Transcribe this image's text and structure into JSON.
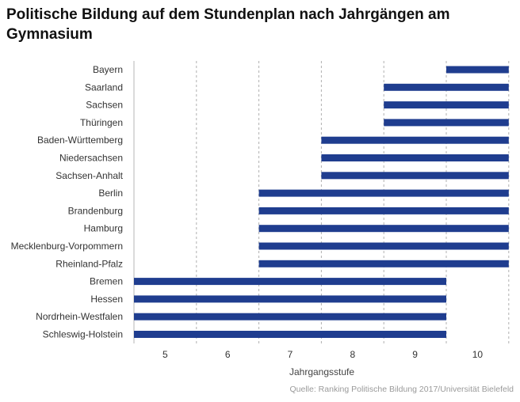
{
  "chart_data": {
    "type": "bar",
    "orientation": "horizontal-range",
    "title": "Politische Bildung auf dem Stundenplan nach Jahrgängen am Gymnasium",
    "xlabel": "Jahrgangsstufe",
    "ylabel": "",
    "x_ticks": [
      "5",
      "6",
      "7",
      "8",
      "9",
      "10"
    ],
    "xlim": [
      5,
      10
    ],
    "grid": "vertical dashed",
    "source": "Quelle: Ranking Politische Bildung 2017/Universität Bielefeld",
    "bar_color": "#1f3d8f",
    "categories": [
      "Bayern",
      "Saarland",
      "Sachsen",
      "Thüringen",
      "Baden-Württemberg",
      "Niedersachsen",
      "Sachsen-Anhalt",
      "Berlin",
      "Brandenburg",
      "Hamburg",
      "Mecklenburg-Vorpommern",
      "Rheinland-Pfalz",
      "Bremen",
      "Hessen",
      "Nordrhein-Westfalen",
      "Schleswig-Holstein"
    ],
    "ranges": [
      {
        "from": 10,
        "to": 10
      },
      {
        "from": 9,
        "to": 10
      },
      {
        "from": 9,
        "to": 10
      },
      {
        "from": 9,
        "to": 10
      },
      {
        "from": 8,
        "to": 10
      },
      {
        "from": 8,
        "to": 10
      },
      {
        "from": 8,
        "to": 10
      },
      {
        "from": 7,
        "to": 10
      },
      {
        "from": 7,
        "to": 10
      },
      {
        "from": 7,
        "to": 10
      },
      {
        "from": 7,
        "to": 10
      },
      {
        "from": 7,
        "to": 10
      },
      {
        "from": 5,
        "to": 9
      },
      {
        "from": 5,
        "to": 9
      },
      {
        "from": 5,
        "to": 9
      },
      {
        "from": 5,
        "to": 9
      }
    ]
  }
}
